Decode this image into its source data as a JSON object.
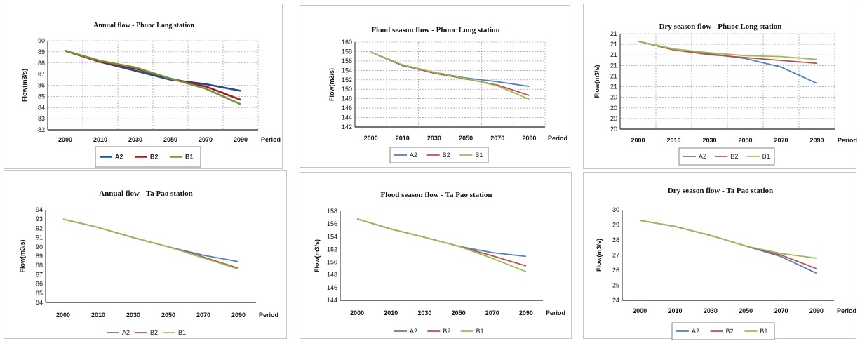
{
  "colors": {
    "A2": "#4f81bd",
    "B2": "#c0504d",
    "B1": "#9bbb59",
    "A2_dark": "#1f4e8c",
    "B2_dark": "#a02020",
    "B1_dark": "#76923c"
  },
  "chart_data": [
    {
      "type": "line",
      "title": "Annual flow - Phuoc Long station",
      "ylabel": "Flow(m3/s)",
      "xlabel": "Period",
      "categories": [
        "2000",
        "2010",
        "2030",
        "2050",
        "2070",
        "2090"
      ],
      "ylim": [
        82,
        90
      ],
      "yticks": [
        "82",
        "83",
        "84",
        "85",
        "86",
        "87",
        "88",
        "89",
        "90"
      ],
      "legend_position": "bottom",
      "grid": true,
      "series": [
        {
          "name": "A2",
          "values": [
            89.1,
            88.1,
            87.3,
            86.5,
            86.1,
            85.5
          ]
        },
        {
          "name": "B2",
          "values": [
            89.1,
            88.1,
            87.5,
            86.6,
            85.9,
            84.7
          ]
        },
        {
          "name": "B1",
          "values": [
            89.1,
            88.2,
            87.6,
            86.6,
            85.7,
            84.3
          ]
        }
      ]
    },
    {
      "type": "line",
      "title": "Flood season flow - Phuoc Long station",
      "ylabel": "Flow(m3/s)",
      "xlabel": "Period",
      "categories": [
        "2000",
        "2010",
        "2030",
        "2050",
        "2070",
        "2090"
      ],
      "ylim": [
        142,
        160
      ],
      "yticks": [
        "142",
        "144",
        "146",
        "148",
        "150",
        "152",
        "154",
        "156",
        "158",
        "160"
      ],
      "legend_position": "bottom",
      "grid": true,
      "series": [
        {
          "name": "A2",
          "values": [
            157.9,
            155.0,
            153.6,
            152.4,
            151.6,
            150.6
          ]
        },
        {
          "name": "B2",
          "values": [
            157.9,
            155.1,
            153.4,
            152.2,
            150.9,
            148.7
          ]
        },
        {
          "name": "B1",
          "values": [
            157.9,
            155.2,
            153.6,
            152.3,
            150.7,
            147.9
          ]
        }
      ]
    },
    {
      "type": "line",
      "title": "Dry season flow - Phuoc Long station",
      "ylabel": "Flow(m3/s)",
      "xlabel": "Period",
      "categories": [
        "2000",
        "2010",
        "2030",
        "2050",
        "2070",
        "2090"
      ],
      "ylim": [
        20,
        21
      ],
      "yticks": [
        "20",
        "20",
        "20",
        "20",
        "21",
        "21",
        "21",
        "21",
        "21",
        "21"
      ],
      "legend_position": "bottom",
      "grid": true,
      "series": [
        {
          "name": "A2",
          "values": [
            20.92,
            20.84,
            20.79,
            20.74,
            20.65,
            20.48
          ]
        },
        {
          "name": "B2",
          "values": [
            20.92,
            20.83,
            20.78,
            20.75,
            20.72,
            20.69
          ]
        },
        {
          "name": "B1",
          "values": [
            20.92,
            20.84,
            20.8,
            20.77,
            20.76,
            20.73
          ]
        }
      ]
    },
    {
      "type": "line",
      "title": "Annual flow - Ta Pao station",
      "ylabel": "Flow(m3/s)",
      "xlabel": "Period",
      "categories": [
        "2000",
        "2010",
        "2030",
        "2050",
        "2070",
        "2090"
      ],
      "ylim": [
        84,
        94
      ],
      "yticks": [
        "84",
        "85",
        "86",
        "87",
        "88",
        "89",
        "90",
        "91",
        "92",
        "93",
        "94"
      ],
      "legend_position": "bottom",
      "grid": false,
      "series": [
        {
          "name": "A2",
          "values": [
            93.0,
            92.1,
            91.0,
            90.0,
            89.1,
            88.4
          ]
        },
        {
          "name": "B2",
          "values": [
            93.0,
            92.1,
            91.0,
            90.0,
            88.9,
            87.7
          ]
        },
        {
          "name": "B1",
          "values": [
            93.0,
            92.1,
            91.0,
            90.0,
            88.8,
            87.6
          ]
        }
      ]
    },
    {
      "type": "line",
      "title": "Flood season flow - Ta Pao station",
      "ylabel": "Flow(m3/s)",
      "xlabel": "Period",
      "categories": [
        "2000",
        "2010",
        "2030",
        "2050",
        "2070",
        "2090"
      ],
      "ylim": [
        144,
        158
      ],
      "yticks": [
        "144",
        "146",
        "148",
        "150",
        "152",
        "154",
        "156",
        "158"
      ],
      "legend_position": "bottom",
      "grid": false,
      "series": [
        {
          "name": "A2",
          "values": [
            156.8,
            155.2,
            153.9,
            152.5,
            151.5,
            150.9
          ]
        },
        {
          "name": "B2",
          "values": [
            156.8,
            155.2,
            153.9,
            152.5,
            151.0,
            149.4
          ]
        },
        {
          "name": "B1",
          "values": [
            156.8,
            155.2,
            153.9,
            152.5,
            150.6,
            148.5
          ]
        }
      ]
    },
    {
      "type": "line",
      "title": "Dry season flow - Ta Pao station",
      "ylabel": "Flow(m3/s)",
      "xlabel": "Period",
      "categories": [
        "2000",
        "2010",
        "2030",
        "2050",
        "2070",
        "2090"
      ],
      "ylim": [
        24,
        30
      ],
      "yticks": [
        "24",
        "25",
        "26",
        "27",
        "28",
        "29",
        "30"
      ],
      "legend_position": "bottom",
      "grid": false,
      "series": [
        {
          "name": "A2",
          "values": [
            29.3,
            28.9,
            28.3,
            27.6,
            26.9,
            25.8
          ]
        },
        {
          "name": "B2",
          "values": [
            29.3,
            28.9,
            28.3,
            27.6,
            27.0,
            26.1
          ]
        },
        {
          "name": "B1",
          "values": [
            29.3,
            28.9,
            28.3,
            27.6,
            27.1,
            26.8
          ]
        }
      ]
    }
  ]
}
